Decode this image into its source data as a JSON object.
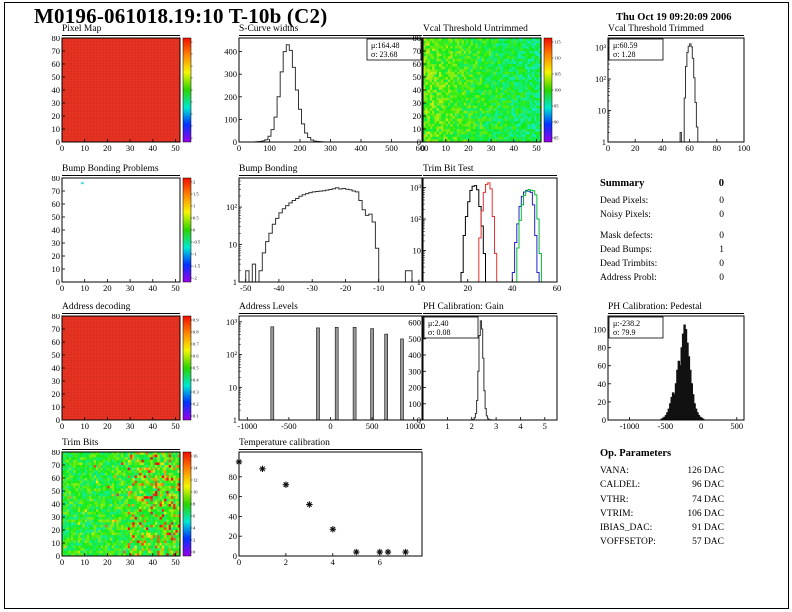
{
  "header": {
    "title": "M0196-061018.19:10 T-10b (C2)",
    "datetime": "Thu Oct 19 09:20:09 2006"
  },
  "summary": {
    "title": "Summary",
    "total": "0",
    "rows": [
      {
        "label": "Dead Pixels:",
        "value": "0"
      },
      {
        "label": "Noisy Pixels:",
        "value": "0"
      },
      {
        "label": "Mask defects:",
        "value": "0"
      },
      {
        "label": "Dead Bumps:",
        "value": "1"
      },
      {
        "label": "Dead Trimbits:",
        "value": "0"
      },
      {
        "label": "Address Probl:",
        "value": "0"
      }
    ]
  },
  "op_parameters": {
    "title": "Op. Parameters",
    "rows": [
      {
        "label": "VANA:",
        "value": "126 DAC"
      },
      {
        "label": "CALDEL:",
        "value": "96 DAC"
      },
      {
        "label": "VTHR:",
        "value": "74 DAC"
      },
      {
        "label": "VTRIM:",
        "value": "106 DAC"
      },
      {
        "label": "IBIAS_DAC:",
        "value": "91 DAC"
      },
      {
        "label": "VOFFSETOP:",
        "value": "57 DAC"
      }
    ]
  },
  "palette": {
    "rainbow": [
      "#f20c00",
      "#ff8a00",
      "#f5f500",
      "#2bd400",
      "#00e8d2",
      "#0033ff",
      "#9b00e8"
    ],
    "solid_map_red": "#ea3423",
    "dead_bump_dot": "#4fd8e8"
  },
  "chart_data": [
    {
      "id": "pixel-map",
      "type": "heatmap",
      "title": "Pixel Map",
      "xlim": [
        0,
        52
      ],
      "xticks": [
        0,
        10,
        20,
        30,
        40,
        50
      ],
      "ylim": [
        0,
        80
      ],
      "yticks": [
        0,
        10,
        20,
        30,
        40,
        50,
        60,
        70,
        80
      ],
      "heatmap": {
        "mode": "solid"
      },
      "colorbar": {
        "labels": []
      }
    },
    {
      "id": "scurve-widths",
      "type": "bar",
      "title": "S-Curve widths",
      "xlim": [
        0,
        600
      ],
      "xticks": [
        0,
        100,
        200,
        300,
        400,
        500,
        600
      ],
      "ylim": [
        0,
        460
      ],
      "yticks": [
        0,
        100,
        200,
        300,
        400
      ],
      "stats": {
        "mu": "164.48",
        "sigma": "23.68",
        "pos": "tr"
      },
      "bins": {
        "x0": 55,
        "dx": 10,
        "color": "#333",
        "counts": [
          1,
          2,
          5,
          10,
          25,
          55,
          110,
          200,
          310,
          400,
          430,
          405,
          330,
          230,
          145,
          80,
          40,
          20,
          9,
          4,
          2,
          1
        ]
      }
    },
    {
      "id": "vcal-threshold-untrimmed",
      "type": "heatmap",
      "title": "Vcal Threshold Untrimmed",
      "xlim": [
        0,
        52
      ],
      "xticks": [
        0,
        10,
        20,
        30,
        40,
        50
      ],
      "ylim": [
        0,
        80
      ],
      "yticks": [
        0,
        10,
        20,
        30,
        40,
        50,
        60,
        70,
        80
      ],
      "heatmap": {
        "mode": "noise",
        "seed": 12345,
        "tl": 0.6,
        "tr": 0.42,
        "noise": 0.26
      },
      "colorbar": {
        "labels": [
          "115",
          "110",
          "105",
          "100",
          "95",
          "90",
          "85"
        ]
      }
    },
    {
      "id": "vcal-threshold-trimmed",
      "type": "bar",
      "title": "Vcal Threshold Trimmed",
      "xlim": [
        0,
        100
      ],
      "xticks": [
        0,
        20,
        40,
        60,
        80,
        100
      ],
      "yscale": "log",
      "ylim": [
        1,
        2000
      ],
      "ylabels": [
        "1",
        "10",
        "10²",
        "10³"
      ],
      "stats": {
        "mu": "60.59",
        "sigma": "1.28",
        "pos": "tl"
      },
      "bins": {
        "x0": 53,
        "dx": 1,
        "color": "#333",
        "counts": [
          2,
          0,
          0,
          25,
          250,
          700,
          1100,
          1300,
          1050,
          450,
          110,
          18,
          3,
          1
        ]
      }
    },
    {
      "id": "bump-bonding-problems",
      "type": "heatmap",
      "title": "Bump Bonding Problems",
      "xlim": [
        0,
        52
      ],
      "xticks": [
        0,
        10,
        20,
        30,
        40,
        50
      ],
      "ylim": [
        0,
        80
      ],
      "yticks": [
        0,
        10,
        20,
        30,
        40,
        50,
        60,
        70,
        80
      ],
      "heatmap": {
        "mode": "empty",
        "dot": [
          9,
          76
        ]
      },
      "colorbar": {
        "labels": [
          "2",
          "1.5",
          "1",
          "0.5",
          "0",
          "-0.5",
          "-1",
          "-1.5",
          "-2"
        ]
      }
    },
    {
      "id": "bump-bonding",
      "type": "bar",
      "title": "Bump Bonding",
      "xlim": [
        -52,
        3
      ],
      "xticks": [
        -50,
        -40,
        -30,
        -20,
        -10,
        0
      ],
      "yscale": "log",
      "ylim": [
        1,
        600
      ],
      "ylabels": [
        "1",
        "10",
        "10²"
      ],
      "bins": {
        "x0": -51,
        "dx": 1,
        "color": "#333",
        "counts": [
          0,
          2,
          0,
          3,
          0,
          2,
          6,
          12,
          20,
          35,
          50,
          70,
          90,
          110,
          130,
          150,
          170,
          195,
          215,
          230,
          245,
          255,
          262,
          268,
          275,
          285,
          295,
          310,
          330,
          305,
          315,
          300,
          290,
          270,
          255,
          150,
          85,
          60,
          65,
          40,
          8,
          1,
          0,
          0,
          0,
          0,
          0,
          0,
          0,
          2,
          2,
          0,
          0
        ]
      }
    },
    {
      "id": "trim-bit-test",
      "type": "bar",
      "title": "Trim Bit Test",
      "xlim": [
        0,
        60
      ],
      "xticks": [
        0,
        20,
        40,
        60
      ],
      "yscale": "log",
      "ylim": [
        1,
        2000
      ],
      "ylabels": [
        "1",
        "10",
        "10²",
        "10³"
      ],
      "series": [
        {
          "name": "trim-bit-1",
          "color": "#000000",
          "x0": 16,
          "dx": 1,
          "counts": [
            1,
            2,
            30,
            120,
            350,
            800,
            1100,
            1150,
            850,
            250,
            60,
            8,
            1
          ]
        },
        {
          "name": "trim-bit-2",
          "color": "#e83030",
          "x0": 24,
          "dx": 1,
          "counts": [
            1,
            25,
            180,
            700,
            1250,
            1400,
            900,
            120,
            8,
            1
          ]
        },
        {
          "name": "trim-bit-3",
          "color": "#2222cc",
          "x0": 40,
          "dx": 1,
          "counts": [
            2,
            18,
            70,
            250,
            520,
            720,
            800,
            760,
            700,
            280,
            30,
            2
          ]
        },
        {
          "name": "trim-bit-4",
          "color": "#00bb33",
          "x0": 41,
          "dx": 1,
          "counts": [
            1,
            12,
            90,
            280,
            560,
            760,
            860,
            820,
            790,
            580,
            100,
            8,
            1
          ]
        }
      ]
    },
    {
      "id": "address-decoding",
      "type": "heatmap",
      "title": "Address decoding",
      "xlim": [
        0,
        52
      ],
      "xticks": [
        0,
        10,
        20,
        30,
        40,
        50
      ],
      "ylim": [
        0,
        80
      ],
      "yticks": [
        0,
        10,
        20,
        30,
        40,
        50,
        60,
        70,
        80
      ],
      "heatmap": {
        "mode": "solid"
      },
      "colorbar": {
        "labels": [
          "0.9",
          "0.8",
          "0.7",
          "0.6",
          "0.5",
          "0.4",
          "0.3",
          "0.2",
          "0.1"
        ]
      }
    },
    {
      "id": "address-levels",
      "type": "bar",
      "title": "Address Levels",
      "xlim": [
        -1100,
        1100
      ],
      "xticks": [
        -1000,
        -500,
        0,
        500,
        1000
      ],
      "yscale": "log",
      "ylim": [
        1,
        1500
      ],
      "ylabels": [
        "1",
        "10",
        "10²",
        "10³"
      ],
      "spikes": [
        [
          -700,
          700
        ],
        [
          -150,
          650
        ],
        [
          75,
          680
        ],
        [
          290,
          680
        ],
        [
          500,
          620
        ],
        [
          670,
          420
        ],
        [
          860,
          300
        ]
      ]
    },
    {
      "id": "ph-calibration-gain",
      "type": "bar",
      "title": "PH Calibration: Gain",
      "xlim": [
        0,
        5.5
      ],
      "xticks": [
        0,
        1,
        2,
        3,
        4,
        5
      ],
      "ylim": [
        0,
        640
      ],
      "yticks": [
        0,
        100,
        200,
        300,
        400,
        500,
        600
      ],
      "stats": {
        "mu": "2.40",
        "sigma": "0.08",
        "pos": "tl"
      },
      "bins": {
        "x0": 2.0,
        "dx": 0.05,
        "color": "#333",
        "counts": [
          2,
          5,
          15,
          40,
          120,
          300,
          520,
          610,
          560,
          380,
          180,
          70,
          25,
          8,
          2,
          1
        ]
      }
    },
    {
      "id": "ph-calibration-pedestal",
      "type": "bar",
      "title": "PH Calibration: Pedestal",
      "xlim": [
        -1300,
        600
      ],
      "xticks": [
        -1000,
        -500,
        0,
        500
      ],
      "ylim": [
        0,
        115
      ],
      "yticks": [
        0,
        20,
        40,
        60,
        80,
        100
      ],
      "stats": {
        "mu": "-238.2",
        "sigma": "79.9",
        "pos": "tl"
      },
      "bins": {
        "x0": -560,
        "dx": 20,
        "color": "#111",
        "fill": "#111",
        "counts": [
          1,
          2,
          3,
          5,
          8,
          12,
          18,
          25,
          30,
          28,
          40,
          55,
          65,
          60,
          80,
          95,
          105,
          100,
          85,
          70,
          55,
          40,
          28,
          18,
          12,
          8,
          5,
          3,
          2,
          1
        ]
      }
    },
    {
      "id": "trim-bits",
      "type": "heatmap",
      "title": "Trim Bits",
      "xlim": [
        0,
        52
      ],
      "xticks": [
        0,
        10,
        20,
        30,
        40,
        50
      ],
      "ylim": [
        0,
        80
      ],
      "yticks": [
        0,
        10,
        20,
        30,
        40,
        50,
        60,
        70,
        80
      ],
      "heatmap": {
        "mode": "noise",
        "seed": 777,
        "tl": 0.5,
        "tr": 0.55,
        "noise": 0.3,
        "hot": true
      },
      "colorbar": {
        "labels": [
          "16",
          "14",
          "12",
          "10",
          "8",
          "6",
          "4",
          "2",
          "0"
        ]
      }
    },
    {
      "id": "temperature-calibration",
      "type": "scatter",
      "title": "Temperature calibration",
      "xlim": [
        0,
        7.8
      ],
      "xticks": [
        0,
        2,
        4,
        6
      ],
      "ylim": [
        0,
        105
      ],
      "yticks": [
        0,
        20,
        40,
        60,
        80
      ],
      "points": [
        [
          0,
          95
        ],
        [
          1,
          88
        ],
        [
          2,
          72
        ],
        [
          3,
          52
        ],
        [
          4,
          27
        ],
        [
          5,
          4
        ],
        [
          6,
          4
        ],
        [
          6.35,
          4
        ],
        [
          7.1,
          4
        ]
      ]
    }
  ]
}
